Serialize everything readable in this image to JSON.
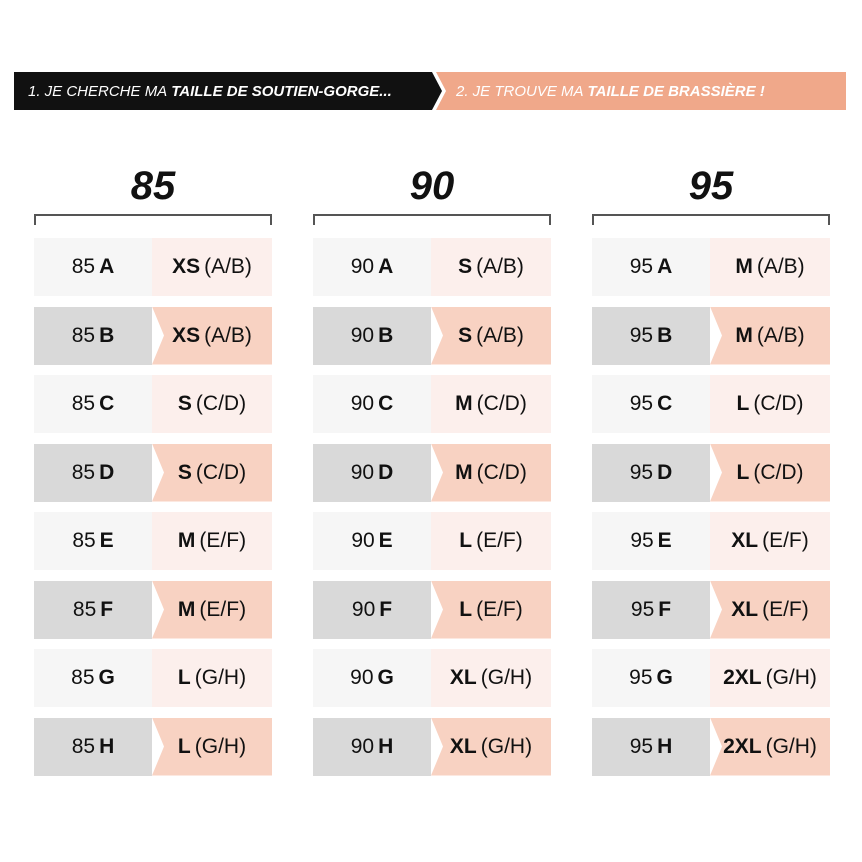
{
  "banner": {
    "step1_prefix": "1. JE CHERCHE MA",
    "step1_bold": "TAILLE DE SOUTIEN-GORGE...",
    "step2_prefix": "2. JE TROUVE MA",
    "step2_bold": "TAILLE DE BRASSIÈRE !"
  },
  "colors": {
    "dark": "#111111",
    "accent": "#f0a88a",
    "row_gray": "#d9d9d9",
    "row_peach": "#f8d2c2"
  },
  "columns": [
    {
      "title": "85",
      "rows": [
        {
          "band": "85",
          "cup": "A",
          "size": "XS",
          "range": "(A/B)"
        },
        {
          "band": "85",
          "cup": "B",
          "size": "XS",
          "range": "(A/B)"
        },
        {
          "band": "85",
          "cup": "C",
          "size": "S",
          "range": "(C/D)"
        },
        {
          "band": "85",
          "cup": "D",
          "size": "S",
          "range": "(C/D)"
        },
        {
          "band": "85",
          "cup": "E",
          "size": "M",
          "range": "(E/F)"
        },
        {
          "band": "85",
          "cup": "F",
          "size": "M",
          "range": "(E/F)"
        },
        {
          "band": "85",
          "cup": "G",
          "size": "L",
          "range": "(G/H)"
        },
        {
          "band": "85",
          "cup": "H",
          "size": "L",
          "range": "(G/H)"
        }
      ]
    },
    {
      "title": "90",
      "rows": [
        {
          "band": "90",
          "cup": "A",
          "size": "S",
          "range": "(A/B)"
        },
        {
          "band": "90",
          "cup": "B",
          "size": "S",
          "range": "(A/B)"
        },
        {
          "band": "90",
          "cup": "C",
          "size": "M",
          "range": "(C/D)"
        },
        {
          "band": "90",
          "cup": "D",
          "size": "M",
          "range": "(C/D)"
        },
        {
          "band": "90",
          "cup": "E",
          "size": "L",
          "range": "(E/F)"
        },
        {
          "band": "90",
          "cup": "F",
          "size": "L",
          "range": "(E/F)"
        },
        {
          "band": "90",
          "cup": "G",
          "size": "XL",
          "range": "(G/H)"
        },
        {
          "band": "90",
          "cup": "H",
          "size": "XL",
          "range": "(G/H)"
        }
      ]
    },
    {
      "title": "95",
      "rows": [
        {
          "band": "95",
          "cup": "A",
          "size": "M",
          "range": "(A/B)"
        },
        {
          "band": "95",
          "cup": "B",
          "size": "M",
          "range": "(A/B)"
        },
        {
          "band": "95",
          "cup": "C",
          "size": "L",
          "range": "(C/D)"
        },
        {
          "band": "95",
          "cup": "D",
          "size": "L",
          "range": "(C/D)"
        },
        {
          "band": "95",
          "cup": "E",
          "size": "XL",
          "range": "(E/F)"
        },
        {
          "band": "95",
          "cup": "F",
          "size": "XL",
          "range": "(E/F)"
        },
        {
          "band": "95",
          "cup": "G",
          "size": "2XL",
          "range": "(G/H)"
        },
        {
          "band": "95",
          "cup": "H",
          "size": "2XL",
          "range": "(G/H)"
        }
      ]
    }
  ]
}
